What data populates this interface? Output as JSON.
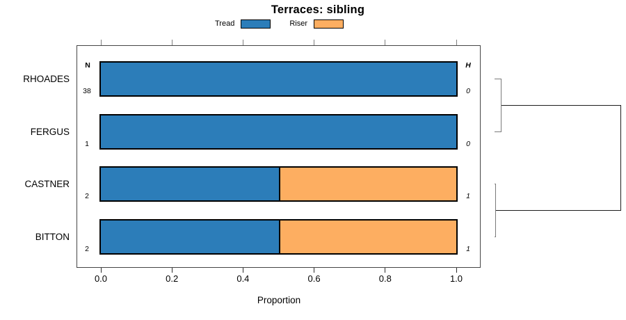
{
  "title": "Terraces: sibling",
  "legend": {
    "items": [
      {
        "label": "Tread",
        "color": "#2c7db9"
      },
      {
        "label": "Riser",
        "color": "#fdae61"
      }
    ]
  },
  "columns": {
    "n_header": "N",
    "h_header": "H"
  },
  "chart_data": {
    "type": "bar",
    "orientation": "horizontal",
    "stacked": true,
    "title": "Terraces: sibling",
    "xlabel": "Proportion",
    "xlim": [
      0,
      1
    ],
    "x_ticks": [
      0.0,
      0.2,
      0.4,
      0.6,
      0.8,
      1.0
    ],
    "x_tick_labels": [
      "0.0",
      "0.2",
      "0.4",
      "0.6",
      "0.8",
      "1.0"
    ],
    "categories": [
      "RHOADES",
      "FERGUS",
      "CASTNER",
      "BITTON"
    ],
    "series": [
      {
        "name": "Tread",
        "color": "#2c7db9",
        "values": [
          1.0,
          1.0,
          0.5,
          0.5
        ]
      },
      {
        "name": "Riser",
        "color": "#fdae61",
        "values": [
          0.0,
          0.0,
          0.5,
          0.5
        ]
      }
    ],
    "n_values": [
      "38",
      "1",
      "2",
      "2"
    ],
    "h_values": [
      "0",
      "0",
      "1",
      "1"
    ],
    "legend_position": "top",
    "grid": false,
    "dendrogram": {
      "clusters": [
        {
          "members": [
            0,
            1
          ]
        },
        {
          "members": [
            2,
            3
          ]
        }
      ],
      "root_joins_clusters": [
        0,
        1
      ]
    }
  }
}
